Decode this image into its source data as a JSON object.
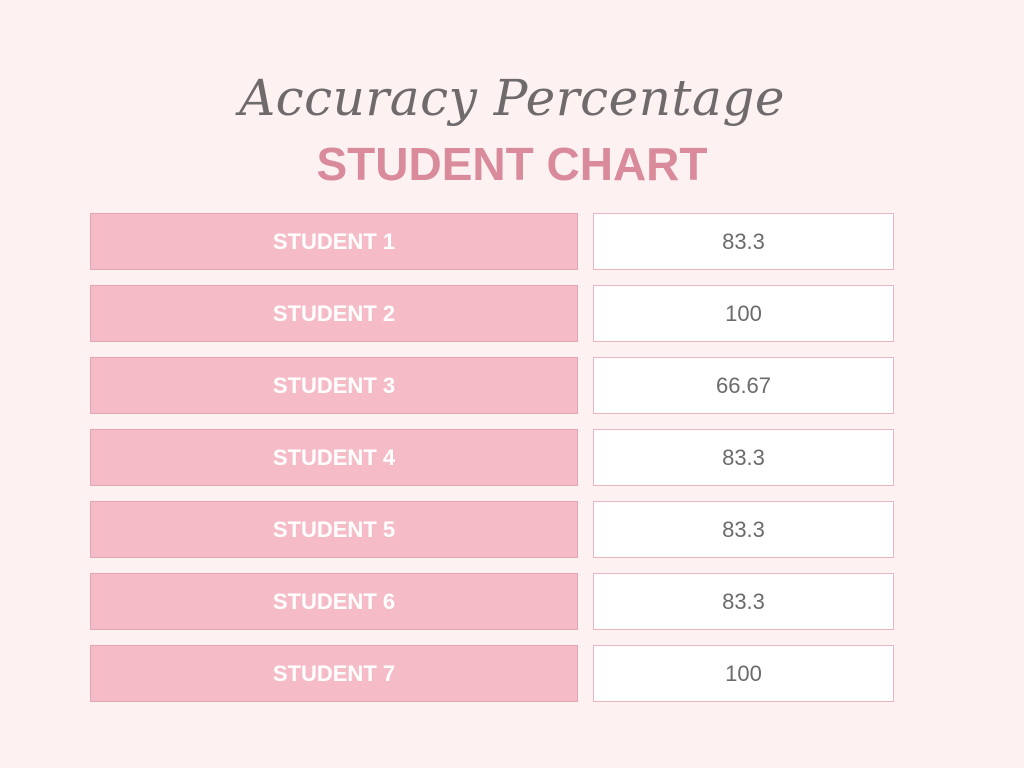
{
  "header": {
    "script_title": "Accuracy Percentage",
    "main_title": "STUDENT CHART"
  },
  "colors": {
    "background": "#fdf1f2",
    "label_fill": "#f5bcc7",
    "title_pink": "#d98b9b",
    "script_gray": "#6f6a6b"
  },
  "chart_data": {
    "type": "table",
    "title": "Accuracy Percentage",
    "subtitle": "STUDENT CHART",
    "categories": [
      "STUDENT 1",
      "STUDENT 2",
      "STUDENT 3",
      "STUDENT 4",
      "STUDENT 5",
      "STUDENT 6",
      "STUDENT 7"
    ],
    "values": [
      "83.3",
      "100",
      "66.67",
      "83.3",
      "83.3",
      "83.3",
      "100"
    ]
  }
}
